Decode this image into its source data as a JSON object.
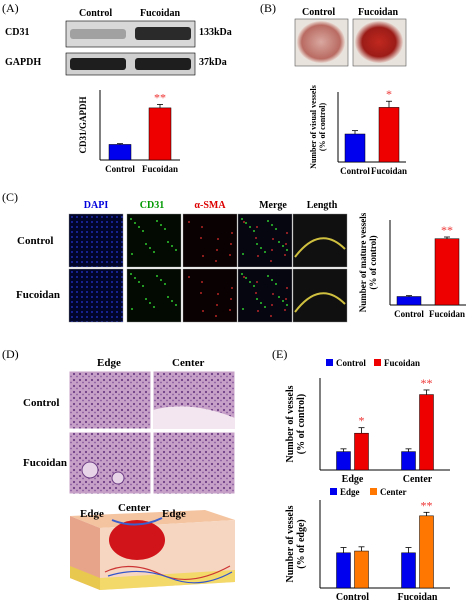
{
  "panels": {
    "A": {
      "label": "(A)",
      "blot": {
        "lanes": [
          "Control",
          "Fucoidan"
        ],
        "rows": [
          {
            "name": "CD31",
            "size": "133kDa"
          },
          {
            "name": "GAPDH",
            "size": "37kDa"
          }
        ]
      },
      "chart_data": {
        "type": "bar",
        "categories": [
          "Control",
          "Fucoidan"
        ],
        "values": [
          1.0,
          3.35
        ],
        "errors": [
          0.05,
          0.22
        ],
        "significance": [
          "",
          "**"
        ],
        "colors": [
          "#0000ee",
          "#ee0000"
        ],
        "xlabel": "",
        "ylabel": "CD31/GAPDH",
        "ylim": [
          0,
          4.5
        ]
      }
    },
    "B": {
      "label": "(B)",
      "photos": [
        "Control",
        "Fucoidan"
      ],
      "chart_data": {
        "type": "bar",
        "categories": [
          "Control",
          "Fucoidan"
        ],
        "values": [
          100,
          195
        ],
        "errors": [
          12,
          22
        ],
        "significance": [
          "",
          "*"
        ],
        "colors": [
          "#0000ee",
          "#ee0000"
        ],
        "ylabel": "Number of visual vessels (% of control)",
        "ylim": [
          0,
          250
        ]
      }
    },
    "C": {
      "label": "(C)",
      "columns": [
        "DAPI",
        "CD31",
        "α-SMA",
        "Merge",
        "Length"
      ],
      "column_colors": [
        "#0000dd",
        "#009900",
        "#dd0000",
        "#000000",
        "#000000"
      ],
      "rows": [
        "Control",
        "Fucoidan"
      ],
      "chart_data": {
        "type": "bar",
        "categories": [
          "Control",
          "Fucoidan"
        ],
        "values": [
          100,
          780
        ],
        "errors": [
          10,
          20
        ],
        "significance": [
          "",
          "**"
        ],
        "colors": [
          "#0000ee",
          "#ee0000"
        ],
        "ylabel": "Number of mature vessels (% of control)",
        "ylim": [
          0,
          1000
        ]
      }
    },
    "D": {
      "label": "(D)",
      "columns": [
        "Edge",
        "Center"
      ],
      "rows": [
        "Control",
        "Fucoidan"
      ],
      "diagram_labels": [
        "Edge",
        "Center",
        "Edge"
      ]
    },
    "E": {
      "label": "(E)",
      "chart_top": {
        "type": "bar",
        "categories": [
          "Edge",
          "Center"
        ],
        "series": [
          {
            "name": "Control",
            "values": [
              1.0,
              1.0
            ],
            "errors": [
              0.15,
              0.15
            ],
            "color": "#0000ee"
          },
          {
            "name": "Fucoidan",
            "values": [
              2.0,
              4.1
            ],
            "errors": [
              0.3,
              0.25
            ],
            "color": "#ee0000"
          }
        ],
        "significance": [
          [
            "",
            "*"
          ],
          [
            "",
            "**"
          ]
        ],
        "ylabel": "Number of vessels (% of control)",
        "ylim": [
          0,
          5
        ]
      },
      "chart_bottom": {
        "type": "bar",
        "categories": [
          "Control",
          "Fucoidan"
        ],
        "series": [
          {
            "name": "Edge",
            "values": [
              1.0,
              1.0
            ],
            "errors": [
              0.15,
              0.15
            ],
            "color": "#0000ee"
          },
          {
            "name": "Center",
            "values": [
              1.05,
              2.05
            ],
            "errors": [
              0.12,
              0.1
            ],
            "color": "#ff7700"
          }
        ],
        "significance": [
          [
            "",
            ""
          ],
          [
            "",
            "**"
          ]
        ],
        "ylabel": "Number of vessels (% of edge)",
        "ylim": [
          0,
          2.5
        ]
      }
    }
  }
}
